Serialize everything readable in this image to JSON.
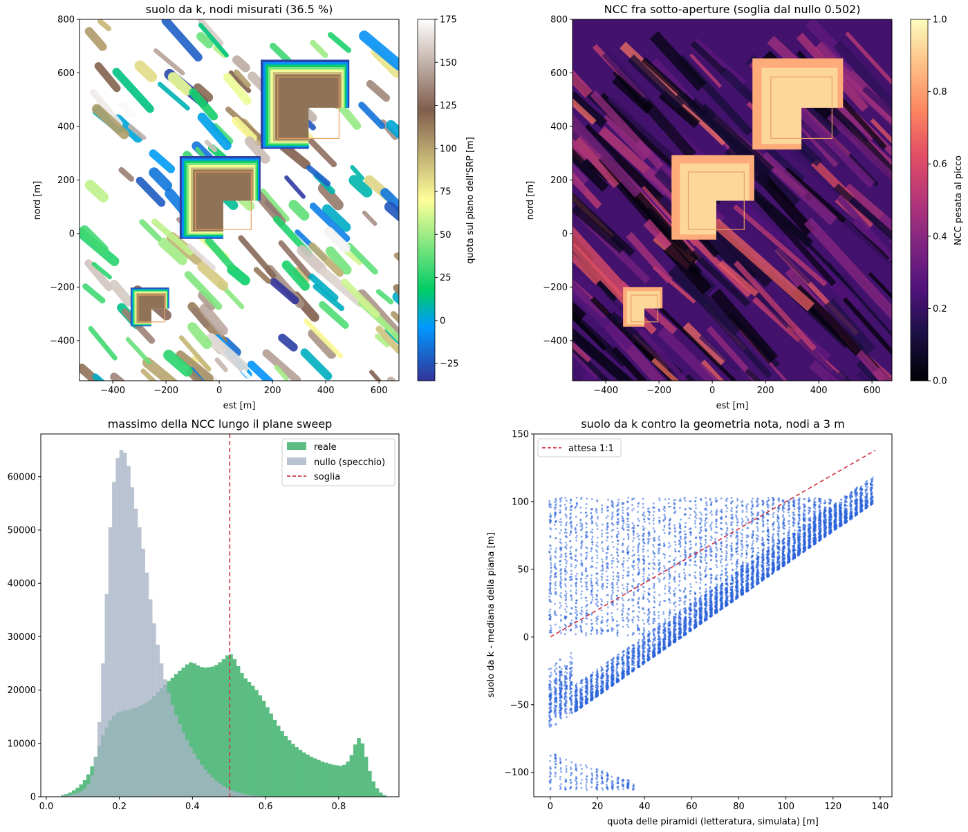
{
  "chart_data": [
    {
      "type": "heatmap",
      "title": "suolo da k, nodi misurati (36.5 %)",
      "xlabel": "est [m]",
      "ylabel": "nord [m]",
      "xlim": [
        -525,
        675
      ],
      "ylim": [
        -550,
        800
      ],
      "xticks": [
        -400,
        -200,
        0,
        200,
        400,
        600
      ],
      "yticks": [
        -400,
        -200,
        0,
        200,
        400,
        600,
        800
      ],
      "xtick_labels": [
        "−400",
        "−200",
        "0",
        "200",
        "400",
        "600"
      ],
      "ytick_labels": [
        "−400",
        "−200",
        "0",
        "200",
        "400",
        "600",
        "800"
      ],
      "colorbar": {
        "label": "quota sul piano dell'SRP [m]",
        "colormap": "terrain",
        "range": [
          -35,
          175
        ],
        "ticks": [
          -25,
          0,
          25,
          50,
          75,
          100,
          125,
          150,
          175
        ],
        "tick_labels": [
          "−25",
          "0",
          "25",
          "50",
          "75",
          "100",
          "125",
          "150",
          "175"
        ]
      },
      "boxes": [
        {
          "x0": -90,
          "x1": 120,
          "y0": 15,
          "y1": 230
        },
        {
          "x0": 220,
          "x1": 450,
          "y0": 355,
          "y1": 585
        },
        {
          "x0": -305,
          "x1": -205,
          "y0": -330,
          "y1": -230
        }
      ],
      "box_color": "#e8a060"
    },
    {
      "type": "heatmap",
      "title": "NCC fra sotto-aperture (soglia dal nullo 0.502)",
      "xlabel": "est [m]",
      "ylabel": "nord [m]",
      "xlim": [
        -525,
        675
      ],
      "ylim": [
        -550,
        800
      ],
      "xticks": [
        -400,
        -200,
        0,
        200,
        400,
        600
      ],
      "yticks": [
        -400,
        -200,
        0,
        200,
        400,
        600,
        800
      ],
      "xtick_labels": [
        "−400",
        "−200",
        "0",
        "200",
        "400",
        "600"
      ],
      "ytick_labels": [
        "−400",
        "−200",
        "0",
        "200",
        "400",
        "600",
        "800"
      ],
      "colorbar": {
        "label": "NCC pesata al picco",
        "colormap": "magma",
        "range": [
          0,
          1
        ],
        "ticks": [
          0,
          0.2,
          0.4,
          0.6,
          0.8,
          1.0
        ],
        "tick_labels": [
          "0.0",
          "0.2",
          "0.4",
          "0.6",
          "0.8",
          "1.0"
        ]
      },
      "boxes": [
        {
          "x0": -90,
          "x1": 120,
          "y0": 15,
          "y1": 230
        },
        {
          "x0": 220,
          "x1": 450,
          "y0": 355,
          "y1": 585
        },
        {
          "x0": -305,
          "x1": -205,
          "y0": -330,
          "y1": -230
        }
      ],
      "box_color": "#e8a060"
    },
    {
      "type": "bar",
      "title": "massimo della NCC lungo il plane sweep",
      "xlabel": "",
      "ylabel": "",
      "xlim": [
        -0.015,
        0.965
      ],
      "ylim": [
        0,
        68000
      ],
      "xticks": [
        0.0,
        0.2,
        0.4,
        0.6,
        0.8
      ],
      "yticks": [
        0,
        10000,
        20000,
        30000,
        40000,
        50000,
        60000
      ],
      "xtick_labels": [
        "0.0",
        "0.2",
        "0.4",
        "0.6",
        "0.8"
      ],
      "ytick_labels": [
        "0",
        "10000",
        "20000",
        "30000",
        "40000",
        "50000",
        "60000"
      ],
      "bin_width": 0.01,
      "threshold": 0.502,
      "legend_position": "top-right",
      "legend": [
        "reale",
        "nullo (specchio)",
        "soglia"
      ],
      "series": [
        {
          "name": "reale",
          "color": "#5bbd82",
          "bins": [
            [
              0.04,
              300
            ],
            [
              0.05,
              500
            ],
            [
              0.06,
              800
            ],
            [
              0.07,
              1200
            ],
            [
              0.08,
              1700
            ],
            [
              0.09,
              2300
            ],
            [
              0.1,
              3100
            ],
            [
              0.11,
              4200
            ],
            [
              0.12,
              5700
            ],
            [
              0.13,
              7500
            ],
            [
              0.14,
              9500
            ],
            [
              0.15,
              11500
            ],
            [
              0.16,
              13000
            ],
            [
              0.17,
              14300
            ],
            [
              0.18,
              15200
            ],
            [
              0.19,
              15800
            ],
            [
              0.2,
              16000
            ],
            [
              0.21,
              16200
            ],
            [
              0.22,
              16300
            ],
            [
              0.23,
              16500
            ],
            [
              0.24,
              16700
            ],
            [
              0.25,
              17000
            ],
            [
              0.26,
              17300
            ],
            [
              0.27,
              17700
            ],
            [
              0.28,
              18200
            ],
            [
              0.29,
              18900
            ],
            [
              0.3,
              19600
            ],
            [
              0.31,
              20300
            ],
            [
              0.32,
              21000
            ],
            [
              0.33,
              21700
            ],
            [
              0.34,
              22300
            ],
            [
              0.35,
              23000
            ],
            [
              0.36,
              23600
            ],
            [
              0.37,
              24200
            ],
            [
              0.38,
              24800
            ],
            [
              0.39,
              25200
            ],
            [
              0.4,
              25000
            ],
            [
              0.41,
              24600
            ],
            [
              0.42,
              24300
            ],
            [
              0.43,
              24200
            ],
            [
              0.44,
              24300
            ],
            [
              0.45,
              24400
            ],
            [
              0.46,
              24700
            ],
            [
              0.47,
              25200
            ],
            [
              0.48,
              25800
            ],
            [
              0.49,
              26500
            ],
            [
              0.5,
              26700
            ],
            [
              0.51,
              25800
            ],
            [
              0.52,
              24500
            ],
            [
              0.53,
              23200
            ],
            [
              0.54,
              22200
            ],
            [
              0.55,
              21500
            ],
            [
              0.56,
              20800
            ],
            [
              0.57,
              20000
            ],
            [
              0.58,
              19000
            ],
            [
              0.59,
              18000
            ],
            [
              0.6,
              16800
            ],
            [
              0.61,
              15600
            ],
            [
              0.62,
              14400
            ],
            [
              0.63,
              13300
            ],
            [
              0.64,
              12300
            ],
            [
              0.65,
              11400
            ],
            [
              0.66,
              10600
            ],
            [
              0.67,
              9900
            ],
            [
              0.68,
              9300
            ],
            [
              0.69,
              8800
            ],
            [
              0.7,
              8300
            ],
            [
              0.71,
              7900
            ],
            [
              0.72,
              7500
            ],
            [
              0.73,
              7200
            ],
            [
              0.74,
              6900
            ],
            [
              0.75,
              6600
            ],
            [
              0.76,
              6400
            ],
            [
              0.77,
              6200
            ],
            [
              0.78,
              6000
            ],
            [
              0.79,
              5900
            ],
            [
              0.8,
              5800
            ],
            [
              0.81,
              6000
            ],
            [
              0.82,
              6600
            ],
            [
              0.83,
              7800
            ],
            [
              0.84,
              9800
            ],
            [
              0.85,
              11000
            ],
            [
              0.86,
              10000
            ],
            [
              0.87,
              7500
            ],
            [
              0.88,
              4800
            ],
            [
              0.89,
              2900
            ],
            [
              0.9,
              1600
            ],
            [
              0.91,
              800
            ],
            [
              0.92,
              300
            ]
          ]
        },
        {
          "name": "nullo (specchio)",
          "color": "#a8b4c6",
          "bins": [
            [
              0.04,
              100
            ],
            [
              0.05,
              200
            ],
            [
              0.06,
              300
            ],
            [
              0.07,
              500
            ],
            [
              0.08,
              700
            ],
            [
              0.09,
              1000
            ],
            [
              0.1,
              1500
            ],
            [
              0.11,
              2300
            ],
            [
              0.12,
              4000
            ],
            [
              0.13,
              7500
            ],
            [
              0.14,
              14000
            ],
            [
              0.15,
              25000
            ],
            [
              0.16,
              38000
            ],
            [
              0.17,
              50500
            ],
            [
              0.18,
              59000
            ],
            [
              0.19,
              63500
            ],
            [
              0.2,
              65000
            ],
            [
              0.21,
              64500
            ],
            [
              0.22,
              62000
            ],
            [
              0.23,
              58000
            ],
            [
              0.24,
              54000
            ],
            [
              0.25,
              50500
            ],
            [
              0.26,
              46500
            ],
            [
              0.27,
              42000
            ],
            [
              0.28,
              37000
            ],
            [
              0.29,
              32500
            ],
            [
              0.3,
              28500
            ],
            [
              0.31,
              25000
            ],
            [
              0.32,
              22000
            ],
            [
              0.33,
              19500
            ],
            [
              0.34,
              17200
            ],
            [
              0.35,
              15300
            ],
            [
              0.36,
              13600
            ],
            [
              0.37,
              12000
            ],
            [
              0.38,
              10600
            ],
            [
              0.39,
              9300
            ],
            [
              0.4,
              8100
            ],
            [
              0.41,
              7000
            ],
            [
              0.42,
              6000
            ],
            [
              0.43,
              5100
            ],
            [
              0.44,
              4300
            ],
            [
              0.45,
              3600
            ],
            [
              0.46,
              3000
            ],
            [
              0.47,
              2500
            ],
            [
              0.48,
              2000
            ],
            [
              0.49,
              1600
            ],
            [
              0.5,
              1300
            ],
            [
              0.51,
              1000
            ],
            [
              0.52,
              800
            ],
            [
              0.53,
              600
            ],
            [
              0.54,
              450
            ],
            [
              0.55,
              350
            ],
            [
              0.56,
              250
            ],
            [
              0.57,
              180
            ],
            [
              0.58,
              120
            ],
            [
              0.59,
              80
            ],
            [
              0.6,
              50
            ]
          ]
        }
      ],
      "threshold_color": "#d03040"
    },
    {
      "type": "scatter",
      "title": "suolo da k contro la geometria nota, nodi a 3 m",
      "xlabel": "quota delle piramidi (letteratura, simulata) [m]",
      "ylabel": "suolo da k - mediana della piana [m]",
      "xlim": [
        -7,
        145
      ],
      "ylim": [
        -118,
        150
      ],
      "xticks": [
        0,
        20,
        40,
        60,
        80,
        100,
        120,
        140
      ],
      "yticks": [
        -100,
        -50,
        0,
        50,
        100,
        150
      ],
      "xtick_labels": [
        "0",
        "20",
        "40",
        "60",
        "80",
        "100",
        "120",
        "140"
      ],
      "ytick_labels": [
        "−100",
        "−50",
        "0",
        "50",
        "100",
        "150"
      ],
      "legend_position": "top-left",
      "legend": [
        "attesa 1:1"
      ],
      "reference_line": {
        "name": "attesa 1:1",
        "x": [
          0,
          138
        ],
        "y": [
          0,
          138
        ],
        "color": "#d03040"
      },
      "point_color": "#2a62d8",
      "point_groups": [
        {
          "x_range": [
            0,
            138
          ],
          "x_step": 2.2,
          "y_range": [
            1,
            103
          ],
          "count": 3600,
          "desc": "sparse upper band"
        },
        {
          "x_range": [
            0,
            138
          ],
          "x_step": 2.2,
          "y_lower": [
            -68,
            100
          ],
          "spread": 20,
          "count": 5200,
          "desc": "dense diagonal band"
        },
        {
          "x_range": [
            0,
            36
          ],
          "x_step": 2.2,
          "y_range": [
            -113,
            -85
          ],
          "count": 260,
          "desc": "low cluster"
        }
      ]
    }
  ]
}
